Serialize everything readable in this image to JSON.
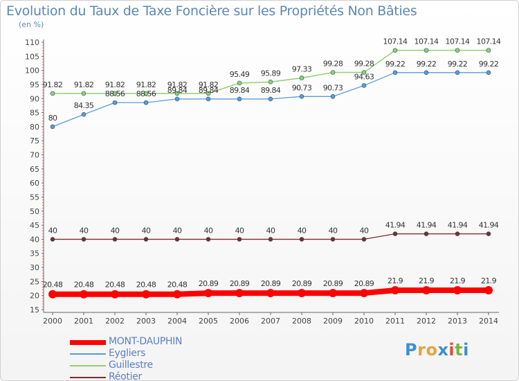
{
  "chart_data": {
    "type": "line",
    "title": "Evolution du Taux de Taxe Foncière sur les Propriétés Non Bâties",
    "ylabel": "(en %)",
    "xlabel": "",
    "ylim": [
      15,
      110
    ],
    "yticks": [
      15,
      20,
      25,
      30,
      35,
      40,
      45,
      50,
      55,
      60,
      65,
      70,
      75,
      80,
      85,
      90,
      95,
      100,
      105,
      110
    ],
    "categories": [
      "2000",
      "2001",
      "2002",
      "2003",
      "2004",
      "2005",
      "2006",
      "2007",
      "2008",
      "2009",
      "2010",
      "2011",
      "2012",
      "2013",
      "2014"
    ],
    "grid": false,
    "legend_position": "bottom-left",
    "series": [
      {
        "name": "MONT-DAUPHIN",
        "color": "#ff0000",
        "values": [
          20.48,
          20.48,
          20.48,
          20.48,
          20.48,
          20.89,
          20.89,
          20.89,
          20.89,
          20.89,
          20.89,
          21.9,
          21.9,
          21.9,
          21.9
        ],
        "labels": [
          "20.48",
          "20.48",
          "20.48",
          "20.48",
          "20.48",
          "20.89",
          "20.89",
          "20.89",
          "20.89",
          "20.89",
          "20.89",
          "21.9",
          "21.9",
          "21.9",
          "21.9"
        ]
      },
      {
        "name": "Eygliers",
        "color": "#5b9bd5",
        "values": [
          80,
          84.35,
          88.56,
          88.56,
          89.84,
          89.84,
          89.84,
          89.84,
          90.73,
          90.73,
          94.63,
          99.22,
          99.22,
          99.22,
          99.22
        ],
        "labels": [
          "80",
          "84.35",
          "88.56",
          "88.56",
          "89.84",
          "89.84",
          "89.84",
          "89.84",
          "90.73",
          "90.73",
          "94.63",
          "99.22",
          "99.22",
          "99.22",
          "99.22"
        ]
      },
      {
        "name": "Guillestre",
        "color": "#8fd16f",
        "values": [
          91.82,
          91.82,
          91.82,
          91.82,
          91.82,
          91.82,
          95.49,
          95.89,
          97.33,
          99.28,
          99.28,
          107.14,
          107.14,
          107.14,
          107.14
        ],
        "labels": [
          "91.82",
          "91.82",
          "91.82",
          "91.82",
          "91.82",
          "91.82",
          "95.49",
          "95.89",
          "97.33",
          "99.28",
          "99.28",
          "107.14",
          "107.14",
          "107.14",
          "107.14"
        ]
      },
      {
        "name": "Réotier",
        "color": "#7a2c2c",
        "values": [
          40,
          40,
          40,
          40,
          40,
          40,
          40,
          40,
          40,
          40,
          40,
          41.94,
          41.94,
          41.94,
          41.94
        ],
        "labels": [
          "40",
          "40",
          "40",
          "40",
          "40",
          "40",
          "40",
          "40",
          "40",
          "40",
          "40",
          "41.94",
          "41.94",
          "41.94",
          "41.94"
        ]
      }
    ]
  },
  "logo": {
    "letters": [
      "P",
      "r",
      "o",
      "x",
      "i",
      "t",
      "i"
    ],
    "colors": [
      "#3d8fd1",
      "#e8a33c",
      "#e8a33c",
      "#3d8fd1",
      "#e04d3c",
      "#7cb342",
      "#3d8fd1"
    ]
  }
}
